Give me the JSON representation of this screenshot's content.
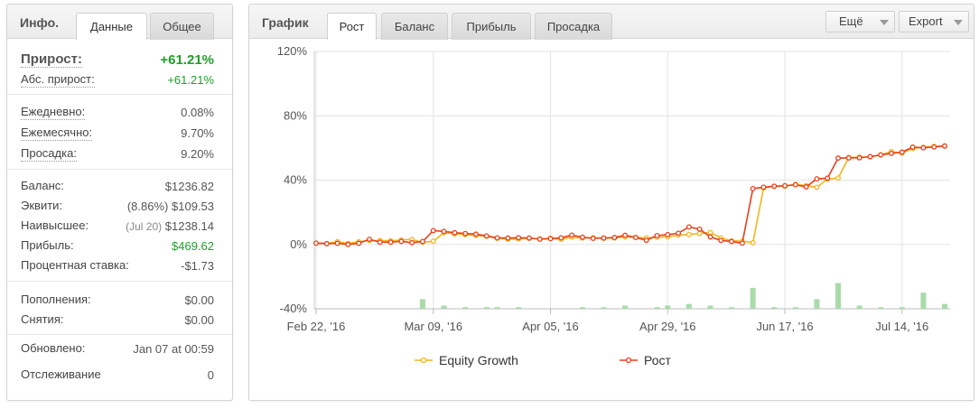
{
  "left": {
    "title": "Инфо.",
    "tabs": [
      {
        "label": "Данные",
        "active": true
      },
      {
        "label": "Общее",
        "active": false
      }
    ],
    "growth": {
      "label": "Прирост:",
      "value": "+61.21%"
    },
    "abs_growth": {
      "label": "Абс. прирост:",
      "value": "+61.21%"
    },
    "daily": {
      "label": "Ежедневно:",
      "value": "0.08%"
    },
    "monthly": {
      "label": "Ежемесячно:",
      "value": "9.70%"
    },
    "drawdown": {
      "label": "Просадка:",
      "value": "9.20%"
    },
    "balance": {
      "label": "Баланс:",
      "value": "$1236.82"
    },
    "equity": {
      "label": "Эквити:",
      "sub": "(8.86%)",
      "value": "$109.53"
    },
    "highest": {
      "label": "Наивысшее:",
      "sub": "(Jul 20)",
      "value": "$1238.14"
    },
    "profit": {
      "label": "Прибыль:",
      "value": "$469.62"
    },
    "interest": {
      "label": "Процентная ставка:",
      "value": "-$1.73"
    },
    "deposits": {
      "label": "Пополнения:",
      "value": "$0.00"
    },
    "withdrawals": {
      "label": "Снятия:",
      "value": "$0.00"
    },
    "updated": {
      "label": "Обновлено:",
      "value": "Jan 07 at 00:59"
    },
    "tracking": {
      "label": "Отслеживание",
      "value": "0"
    }
  },
  "right": {
    "title": "График",
    "tabs": [
      {
        "label": "Рост",
        "active": true
      },
      {
        "label": "Баланс",
        "active": false
      },
      {
        "label": "Прибыль",
        "active": false
      },
      {
        "label": "Просадка",
        "active": false
      }
    ],
    "more_label": "Ещё",
    "export_label": "Export"
  },
  "colors": {
    "growth_line": "#e8401c",
    "equity_line": "#f2b51c",
    "bars": "#a9dba9",
    "green_text": "#1e9f28",
    "grid": "#e3e3e3"
  },
  "chart_data": {
    "type": "line",
    "title": "",
    "xlabel": "",
    "ylabel": "",
    "ylim": [
      -40,
      120
    ],
    "y_ticks": [
      "120%",
      "80%",
      "40%",
      "0%",
      "-40%"
    ],
    "y_tick_values": [
      120,
      80,
      40,
      0,
      -40
    ],
    "x_tick_labels": [
      "Feb 22, '16",
      "Mar 09, '16",
      "Apr 05, '16",
      "Apr 29, '16",
      "Jun 17, '16",
      "Jul 14, '16"
    ],
    "x_tick_index": [
      0,
      11,
      22,
      33,
      44,
      55
    ],
    "n_points": 60,
    "series": [
      {
        "name": "Equity Growth",
        "values": [
          0.8,
          0.5,
          1.7,
          0.6,
          1.7,
          2.4,
          2.4,
          2.2,
          2.8,
          3.1,
          1.3,
          2.0,
          7.3,
          6.6,
          6.1,
          5.6,
          5.1,
          3.8,
          3.3,
          3.4,
          3.8,
          3.5,
          3.8,
          3.2,
          4.5,
          4.0,
          4.2,
          3.8,
          4.0,
          4.7,
          4.4,
          4.1,
          4.4,
          4.8,
          5.8,
          6.2,
          6.8,
          7.4,
          4.1,
          2.3,
          2.0,
          1.1,
          35.1,
          36.2,
          36.2,
          37.4,
          36.6,
          35.5,
          40.7,
          41.3,
          54.1,
          54.3,
          54.4,
          55.7,
          57.7,
          56.8,
          59.7,
          60.4,
          61.0,
          61.2
        ]
      },
      {
        "name": "Рост",
        "values": [
          0.8,
          0.5,
          0.7,
          0.0,
          0.7,
          3.2,
          1.4,
          1.4,
          1.9,
          1.1,
          1.8,
          8.6,
          8.1,
          7.3,
          6.8,
          6.4,
          5.3,
          4.1,
          4.0,
          4.2,
          4.0,
          3.3,
          3.6,
          4.1,
          5.8,
          4.5,
          3.8,
          4.0,
          4.3,
          5.7,
          4.3,
          2.6,
          5.5,
          6.1,
          7.0,
          10.9,
          9.5,
          4.7,
          2.5,
          1.8,
          0.8,
          34.7,
          35.6,
          36.2,
          36.5,
          37.1,
          35.8,
          40.8,
          41.2,
          53.7,
          53.8,
          53.9,
          54.6,
          55.7,
          56.6,
          57.4,
          60.5,
          60.1,
          60.6,
          61.2
        ]
      }
    ],
    "bar_values": [
      0,
      0,
      0,
      0,
      0,
      0,
      0,
      0,
      0,
      0,
      6,
      0,
      2,
      0,
      1,
      0,
      1,
      1,
      0,
      1,
      0,
      0,
      0,
      0,
      0,
      1,
      0,
      1,
      0,
      2,
      0,
      0,
      1,
      2,
      0,
      3,
      0,
      2,
      0,
      1,
      0,
      13,
      0,
      1,
      0,
      1,
      0,
      6,
      0,
      16,
      0,
      2,
      0,
      1,
      0,
      1,
      0,
      10,
      0,
      3
    ],
    "legend": [
      "Equity Growth",
      "Рост"
    ],
    "legend_position": "bottom"
  }
}
